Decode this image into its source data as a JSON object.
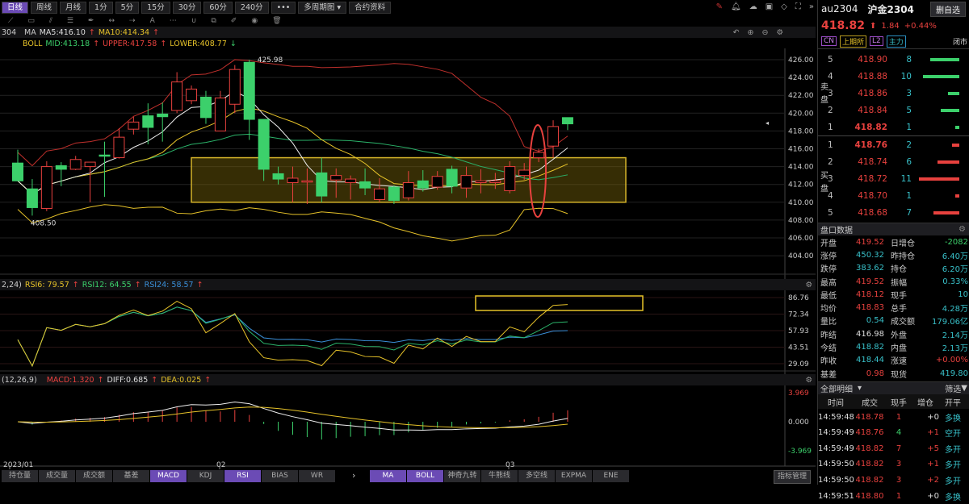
{
  "toolbar": {
    "periods": [
      "日线",
      "周线",
      "月线",
      "1分",
      "5分",
      "15分",
      "30分",
      "60分",
      "240分",
      "•••",
      "多周期图 ▾",
      "合约资料"
    ],
    "active": "日线"
  },
  "drawing_tools": [
    "line-tool-icon",
    "rect-tool-icon",
    "parallel-tool-icon",
    "fib-tool-icon",
    "pen-tool-icon",
    "measure-tool-icon",
    "ray-tool-icon",
    "text-tool-icon",
    "more-icon",
    "magnet-icon",
    "copy-icon",
    "eraser-icon",
    "eye-icon",
    "trash-icon"
  ],
  "main_chart": {
    "code_partial": "304",
    "ma_label": "MA",
    "ma5": "MA5:416.10",
    "ma10": "MA10:414.34",
    "boll_label": "BOLL",
    "boll_mid": "MID:413.18",
    "boll_upper": "UPPER:417.58",
    "boll_lower": "LOWER:408.77",
    "high_marker": "425.98",
    "low_marker": "408.50",
    "price_ticks": [
      426,
      424,
      422,
      420,
      418,
      416,
      414,
      412,
      410,
      408,
      406,
      404
    ],
    "candles": [
      [
        414.4,
        412.4,
        415.9,
        412.4
      ],
      [
        411.5,
        409.4,
        412.6,
        408.5
      ],
      [
        409.3,
        414.0,
        414.6,
        409.0
      ],
      [
        414.1,
        413.7,
        414.5,
        411.8
      ],
      [
        413.7,
        414.8,
        415.2,
        413.6
      ],
      [
        414.0,
        414.5,
        414.5,
        410.0
      ],
      [
        415.3,
        415.2,
        416.8,
        410.6
      ],
      [
        415.0,
        417.3,
        418.3,
        414.9
      ],
      [
        418.2,
        419.0,
        419.6,
        417.6
      ],
      [
        419.7,
        418.4,
        421.1,
        416.5
      ],
      [
        419.9,
        419.6,
        421.2,
        416.8
      ],
      [
        420.3,
        423.5,
        424.6,
        420.0
      ],
      [
        421.4,
        422.7,
        423.1,
        421.0
      ],
      [
        421.8,
        419.5,
        422.5,
        418.8
      ],
      [
        418.0,
        421.7,
        422.5,
        418.0
      ],
      [
        421.0,
        424.9,
        425.4,
        420.0
      ],
      [
        425.7,
        419.3,
        425.98,
        417.0
      ],
      [
        419.3,
        413.7,
        419.3,
        412.4
      ],
      [
        413.2,
        412.6,
        414.0,
        412.0
      ],
      [
        412.2,
        412.7,
        414.0,
        410.0
      ],
      [
        412.3,
        412.4,
        413.8,
        409.8
      ],
      [
        413.3,
        410.7,
        415.0,
        410.0
      ],
      [
        412.5,
        413.0,
        413.8,
        410.5
      ],
      [
        412.2,
        412.6,
        413.0,
        410.3
      ],
      [
        412.3,
        411.6,
        413.8,
        410.8
      ],
      [
        410.3,
        411.5,
        412.7,
        410.0
      ],
      [
        411.7,
        410.2,
        411.9,
        409.8
      ],
      [
        410.5,
        412.2,
        413.5,
        410.2
      ],
      [
        412.4,
        411.6,
        413.6,
        411.2
      ],
      [
        411.7,
        412.9,
        413.5,
        411.4
      ],
      [
        413.7,
        411.8,
        414.1,
        411.0
      ],
      [
        411.6,
        413.0,
        414.0,
        410.5
      ],
      [
        412.2,
        412.4,
        413.7,
        411.0
      ],
      [
        412.2,
        412.4,
        413.3,
        411.5
      ],
      [
        411.3,
        414.0,
        414.6,
        411.0
      ],
      [
        413.0,
        413.6,
        414.4,
        412.5
      ],
      [
        415.0,
        415.6,
        416.0,
        414.5
      ],
      [
        416.3,
        418.5,
        419.2,
        415.0
      ],
      [
        419.5,
        418.8,
        419.5,
        418.1
      ]
    ],
    "highlight_box": {
      "price_from": 410,
      "price_to": 415,
      "color": "#d4b32a"
    },
    "ellipse_color": "#e8413e"
  },
  "rsi": {
    "params": "2,24)",
    "rsi6": "RSI6: 79.57",
    "rsi12": "RSI12: 64.55",
    "rsi24": "RSI24: 58.57",
    "ticks": [
      "86.76",
      "72.34",
      "57.93",
      "43.51",
      "29.09"
    ],
    "range": [
      29.09,
      86.76
    ]
  },
  "macd": {
    "params": "(12,26,9)",
    "macd": "MACD:1.320",
    "diff": "DIFF:0.685",
    "dea": "DEA:0.025",
    "ticks": [
      "3.969",
      "0.000",
      "-3.969"
    ],
    "range": [
      -3.969,
      3.969
    ]
  },
  "date_labels": [
    "2023/01",
    "02",
    "03"
  ],
  "bottom_tabs_left": [
    "持仓量",
    "成交量",
    "成交额",
    "基差",
    "MACD",
    "KDJ",
    "RSI",
    "BIAS",
    "WR"
  ],
  "bottom_tabs_left_active": [
    "MACD",
    "RSI"
  ],
  "bottom_tabs_right": [
    "MA",
    "BOLL",
    "神奇九转",
    "牛熊线",
    "多空线",
    "EXPMA",
    "ENE"
  ],
  "bottom_tabs_right_active": [
    "MA",
    "BOLL"
  ],
  "indicator_manage": "指标管理",
  "quote": {
    "code": "au2304",
    "name": "沪金2304",
    "add_watch": "删自选",
    "price": "418.82",
    "change": "1.84",
    "change_pct": "+0.44%",
    "tags": [
      "CN",
      "上期所",
      "L2",
      "主力"
    ],
    "status": "闭市"
  },
  "orderbook": {
    "sell_label": "卖盘",
    "buy_label": "买盘",
    "asks": [
      {
        "level": "5",
        "price": "418.90",
        "vol": "8"
      },
      {
        "level": "4",
        "price": "418.88",
        "vol": "10"
      },
      {
        "level": "3",
        "price": "418.86",
        "vol": "3"
      },
      {
        "level": "2",
        "price": "418.84",
        "vol": "5"
      },
      {
        "level": "1",
        "price": "418.82",
        "vol": "1"
      }
    ],
    "bids": [
      {
        "level": "1",
        "price": "418.76",
        "vol": "2"
      },
      {
        "level": "2",
        "price": "418.74",
        "vol": "6"
      },
      {
        "level": "3",
        "price": "418.72",
        "vol": "11"
      },
      {
        "level": "4",
        "price": "418.70",
        "vol": "1"
      },
      {
        "level": "5",
        "price": "418.68",
        "vol": "7"
      }
    ]
  },
  "panel_data": {
    "title": "盘口数据",
    "rows": [
      [
        "开盘",
        "419.52",
        "red",
        "日增仓",
        "-2082",
        "grn"
      ],
      [
        "涨停",
        "450.32",
        "teal",
        "昨持仓",
        "6.40万",
        "teal"
      ],
      [
        "跌停",
        "383.62",
        "teal",
        "持仓",
        "6.20万",
        "teal"
      ],
      [
        "最高",
        "419.52",
        "red",
        "振幅",
        "0.33%",
        "teal"
      ],
      [
        "最低",
        "418.12",
        "red",
        "现手",
        "10",
        "teal"
      ],
      [
        "均价",
        "418.83",
        "red",
        "总手",
        "4.28万",
        "teal"
      ],
      [
        "量比",
        "0.54",
        "teal",
        "成交额",
        "179.06亿",
        "teal"
      ],
      [
        "昨结",
        "416.98",
        "white",
        "外盘",
        "2.14万",
        "teal"
      ],
      [
        "今结",
        "418.82",
        "teal",
        "内盘",
        "2.13万",
        "teal"
      ],
      [
        "昨收",
        "418.44",
        "teal",
        "涨速",
        "+0.00%",
        "red"
      ],
      [
        "基差",
        "0.98",
        "red",
        "现货",
        "419.80",
        "teal"
      ]
    ]
  },
  "ticks_panel": {
    "title": "全部明细",
    "filter": "筛选",
    "headers": [
      "时间",
      "成交",
      "现手",
      "增仓",
      "开平"
    ],
    "rows": [
      [
        "14:59:48",
        "418.78",
        "1",
        "+0",
        "多换"
      ],
      [
        "14:59:49",
        "418.76",
        "4",
        "+1",
        "空开"
      ],
      [
        "14:59:49",
        "418.82",
        "7",
        "+5",
        "多开"
      ],
      [
        "14:59:50",
        "418.82",
        "3",
        "+1",
        "多开"
      ],
      [
        "14:59:50",
        "418.82",
        "3",
        "+2",
        "多开"
      ],
      [
        "14:59:51",
        "418.80",
        "1",
        "+0",
        "多换"
      ]
    ]
  },
  "colors": {
    "up": "#e8413e",
    "down": "#3cd06b",
    "accent": "#6b4bb5",
    "teal": "#38c0c9"
  }
}
